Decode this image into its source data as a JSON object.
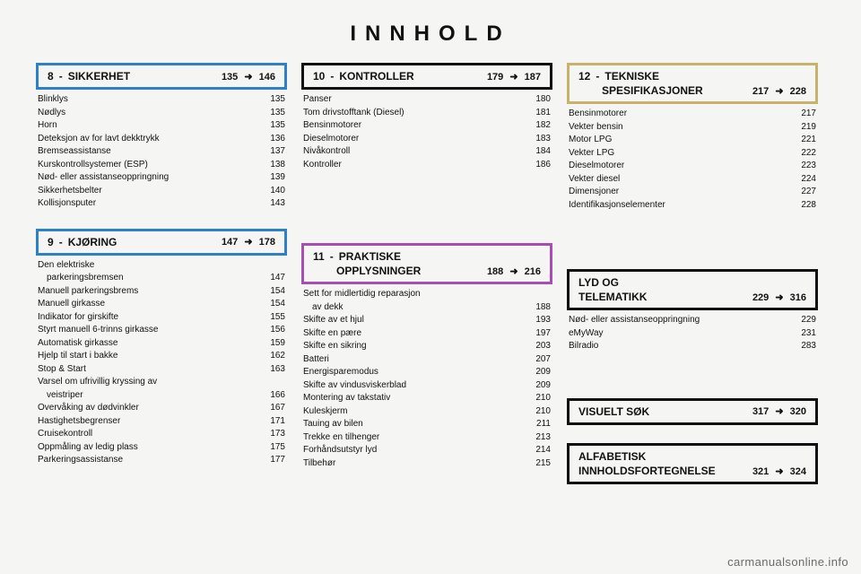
{
  "title": "INNHOLD",
  "watermark": "carmanualsonline.info",
  "colors": {
    "blue": "#2f7fc9",
    "gold": "#c9b36a",
    "purple": "#a64fb3",
    "black": "#111111",
    "bg": "#f5f5f3"
  },
  "arrow": "➜",
  "sections": {
    "s8": {
      "num": "8",
      "title": "SIKKERHET",
      "from": "135",
      "to": "146",
      "color": "blue"
    },
    "s9": {
      "num": "9",
      "title": "KJØRING",
      "from": "147",
      "to": "178",
      "color": "blue"
    },
    "s10": {
      "num": "10",
      "title": "KONTROLLER",
      "from": "179",
      "to": "187",
      "color": "black"
    },
    "s11": {
      "num": "11",
      "title_l1": "PRAKTISKE",
      "title_l2": "OPPLYSNINGER",
      "from": "188",
      "to": "216",
      "color": "purple"
    },
    "s12": {
      "num": "12",
      "title_l1": "TEKNISKE",
      "title_l2": "SPESIFIKASJONER",
      "from": "217",
      "to": "228",
      "color": "gold"
    },
    "lyd": {
      "title_l1": "LYD OG",
      "title_l2": "TELEMATIKK",
      "from": "229",
      "to": "316",
      "color": "black"
    },
    "vis": {
      "title": "VISUELT SØK",
      "from": "317",
      "to": "320",
      "color": "black"
    },
    "alf": {
      "title_l1": "ALFABETISK",
      "title_l2": "INNHOLDSFORTEGNELSE",
      "from": "321",
      "to": "324",
      "color": "black"
    }
  },
  "lists": {
    "s8": [
      [
        "Blinklys",
        "135"
      ],
      [
        "Nødlys",
        "135"
      ],
      [
        "Horn",
        "135"
      ],
      [
        "Deteksjon av for lavt dekktrykk",
        "136"
      ],
      [
        "Bremseassistanse",
        "137"
      ],
      [
        "Kurskontrollsystemer (ESP)",
        "138"
      ],
      [
        "Nød- eller assistanseoppringning",
        "139"
      ],
      [
        "Sikkerhetsbelter",
        "140"
      ],
      [
        "Kollisjonsputer",
        "143"
      ]
    ],
    "s9": [
      [
        "Den elektriske",
        ""
      ],
      [
        "  parkeringsbremsen",
        "147"
      ],
      [
        "Manuell parkeringsbrems",
        "154"
      ],
      [
        "Manuell girkasse",
        "154"
      ],
      [
        "Indikator for girskifte",
        "155"
      ],
      [
        "Styrt manuell 6-trinns girkasse",
        "156"
      ],
      [
        "Automatisk girkasse",
        "159"
      ],
      [
        "Hjelp til start i bakke",
        "162"
      ],
      [
        "Stop & Start",
        "163"
      ],
      [
        "Varsel om ufrivillig kryssing av",
        ""
      ],
      [
        "  veistriper",
        "166"
      ],
      [
        "Overvåking av dødvinkler",
        "167"
      ],
      [
        "Hastighetsbegrenser",
        "171"
      ],
      [
        "Cruisekontroll",
        "173"
      ],
      [
        "Oppmåling av ledig plass",
        "175"
      ],
      [
        "Parkeringsassistanse",
        "177"
      ]
    ],
    "s10": [
      [
        "Panser",
        "180"
      ],
      [
        "Tom drivstofftank (Diesel)",
        "181"
      ],
      [
        "Bensinmotorer",
        "182"
      ],
      [
        "Dieselmotorer",
        "183"
      ],
      [
        "Nivåkontroll",
        "184"
      ],
      [
        "Kontroller",
        "186"
      ]
    ],
    "s11": [
      [
        "Sett for midlertidig reparasjon",
        ""
      ],
      [
        "  av dekk",
        "188"
      ],
      [
        "Skifte av et hjul",
        "193"
      ],
      [
        "Skifte en pære",
        "197"
      ],
      [
        "Skifte en sikring",
        "203"
      ],
      [
        "Batteri",
        "207"
      ],
      [
        "Energisparemodus",
        "209"
      ],
      [
        "Skifte av vindusviskerblad",
        "209"
      ],
      [
        "Montering av takstativ",
        "210"
      ],
      [
        "Kuleskjerm",
        "210"
      ],
      [
        "Tauing av bilen",
        "211"
      ],
      [
        "Trekke en tilhenger",
        "213"
      ],
      [
        "Forhåndsutstyr lyd",
        "214"
      ],
      [
        "Tilbehør",
        "215"
      ]
    ],
    "s12": [
      [
        "Bensinmotorer",
        "217"
      ],
      [
        "Vekter bensin",
        "219"
      ],
      [
        "Motor LPG",
        "221"
      ],
      [
        "Vekter LPG",
        "222"
      ],
      [
        "Dieselmotorer",
        "223"
      ],
      [
        "Vekter diesel",
        "224"
      ],
      [
        "Dimensjoner",
        "227"
      ],
      [
        "Identifikasjonselementer",
        "228"
      ]
    ],
    "lyd": [
      [
        "Nød- eller assistanseoppringning",
        "229"
      ],
      [
        "eMyWay",
        "231"
      ],
      [
        "Bilradio",
        "283"
      ]
    ]
  }
}
